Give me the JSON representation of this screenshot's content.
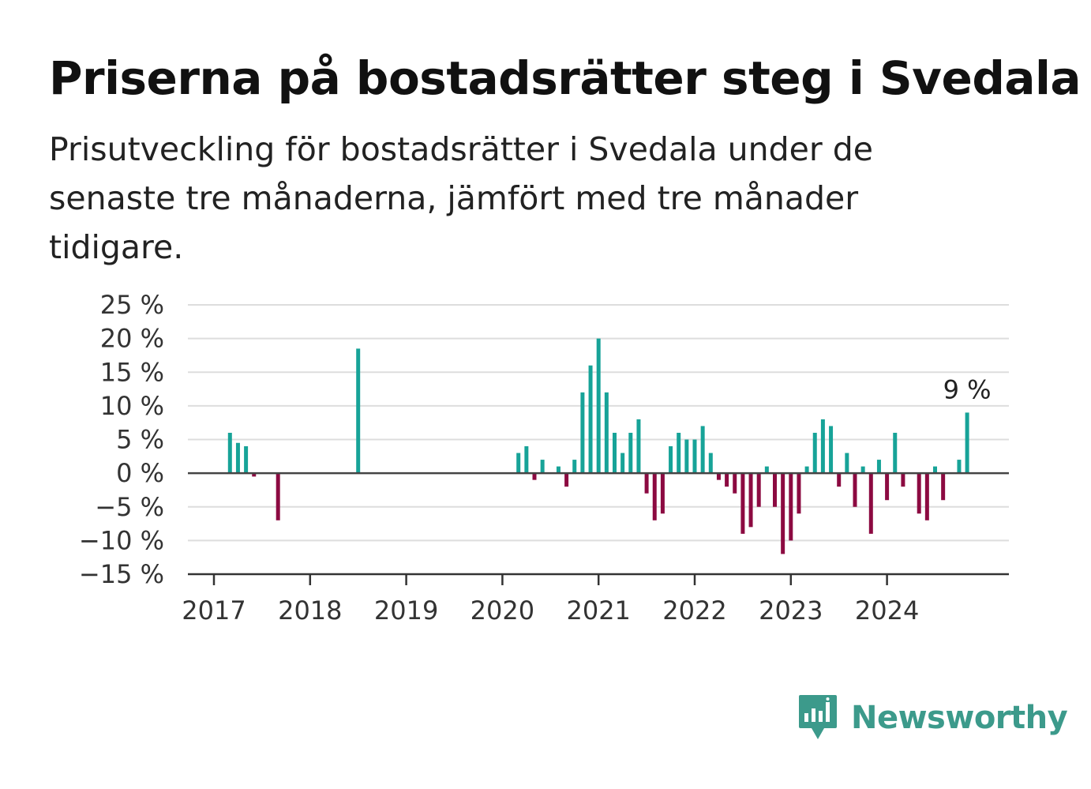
{
  "header": {
    "title": "Priserna på bostadsrätter steg i Svedala",
    "subtitle": "Prisutveckling för bostadsrätter i Svedala under de senaste tre månaderna, jämfört med tre månader tidigare."
  },
  "brand": {
    "name": "Newsworthy",
    "icon": "newsworthy-chart-bubble-icon",
    "color": "#3c9a8b"
  },
  "chart_data": {
    "type": "bar",
    "title": "Priserna på bostadsrätter steg i Svedala",
    "xlabel": "",
    "ylabel": "",
    "ylim": [
      -15,
      25
    ],
    "y_ticks": [
      25,
      20,
      15,
      10,
      5,
      0,
      -5,
      -10,
      -15
    ],
    "y_tick_labels": [
      "25 %",
      "20 %",
      "15 %",
      "10 %",
      "5 %",
      "0 %",
      "−5 %",
      "−10 %",
      "−15 %"
    ],
    "x_ticks": [
      "2017",
      "2018",
      "2019",
      "2020",
      "2021",
      "2022",
      "2023",
      "2024"
    ],
    "x_range": [
      "2016-12",
      "2025-04"
    ],
    "grid": true,
    "positive_color": "#17a398",
    "negative_color": "#8c0a41",
    "annotation": {
      "label": "9 %",
      "x": "2024-11",
      "value": 9
    },
    "x": [
      "2017-03",
      "2017-04",
      "2017-05",
      "2017-06",
      "2017-09",
      "2018-07",
      "2020-03",
      "2020-04",
      "2020-05",
      "2020-06",
      "2020-08",
      "2020-09",
      "2020-10",
      "2020-11",
      "2020-12",
      "2021-01",
      "2021-02",
      "2021-03",
      "2021-04",
      "2021-05",
      "2021-06",
      "2021-07",
      "2021-08",
      "2021-09",
      "2021-10",
      "2021-11",
      "2021-12",
      "2022-01",
      "2022-02",
      "2022-03",
      "2022-04",
      "2022-05",
      "2022-06",
      "2022-07",
      "2022-08",
      "2022-09",
      "2022-10",
      "2022-11",
      "2022-12",
      "2023-01",
      "2023-02",
      "2023-03",
      "2023-04",
      "2023-05",
      "2023-06",
      "2023-07",
      "2023-08",
      "2023-09",
      "2023-10",
      "2023-11",
      "2023-12",
      "2024-01",
      "2024-02",
      "2024-03",
      "2024-05",
      "2024-06",
      "2024-07",
      "2024-08",
      "2024-10",
      "2024-11"
    ],
    "values": [
      6,
      4.5,
      4,
      -0.5,
      -7,
      18.5,
      3,
      4,
      -1,
      2,
      1,
      -2,
      2,
      12,
      16,
      20,
      12,
      6,
      3,
      6,
      8,
      -3,
      -7,
      -6,
      4,
      6,
      5,
      5,
      7,
      3,
      -1,
      -2,
      -3,
      -9,
      -8,
      -5,
      1,
      -5,
      -12,
      -10,
      -6,
      1,
      6,
      8,
      7,
      -2,
      3,
      -5,
      1,
      -9,
      2,
      -4,
      6,
      -2,
      -6,
      -7,
      1,
      -4,
      2,
      9
    ]
  }
}
